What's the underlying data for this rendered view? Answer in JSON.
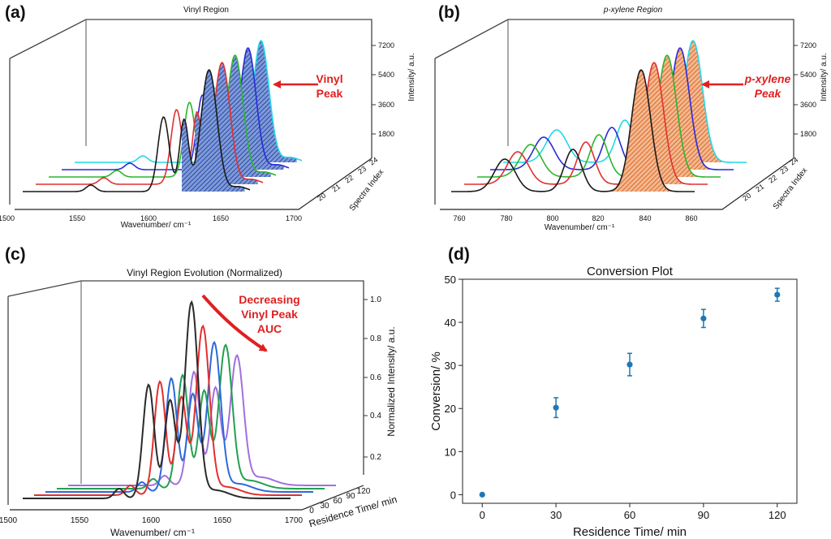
{
  "chart_data": [
    {
      "panel": "(a)",
      "type": "line",
      "title": "Vinyl Region",
      "xlabel": "Wavenumber/ cm⁻¹",
      "ylabel": "Intensity/ a.u.",
      "zlabel": "Spectra Index",
      "x_ticks": [
        "1500",
        "1550",
        "1600",
        "1650",
        "1700"
      ],
      "y_ticks": [
        "1800",
        "3600",
        "5400",
        "7200"
      ],
      "z_ticks": [
        "20",
        "21",
        "22",
        "23",
        "24"
      ],
      "annotation": "Vinyl\nPeak",
      "series_colors": [
        "#1a1a1a",
        "#e03030",
        "#2db52d",
        "#2a2ad8",
        "#22d8e8"
      ],
      "fill_color": "#2f5ab0"
    },
    {
      "panel": "(b)",
      "type": "line",
      "title": "p-xylene Region",
      "xlabel": "Wavenumber/ cm⁻¹",
      "ylabel": "Intensity/ a.u.",
      "zlabel": "Spectra Index",
      "x_ticks": [
        "760",
        "780",
        "800",
        "820",
        "840",
        "860"
      ],
      "y_ticks": [
        "1800",
        "3600",
        "5400",
        "7200"
      ],
      "z_ticks": [
        "20",
        "21",
        "22",
        "23",
        "24"
      ],
      "annotation": "p-xylene\nPeak",
      "series_colors": [
        "#1a1a1a",
        "#e03030",
        "#2db52d",
        "#2a2ad8",
        "#22d8e8"
      ],
      "fill_color": "#e0874a"
    },
    {
      "panel": "(c)",
      "type": "line",
      "title": "Vinyl Region Evolution (Normalized)",
      "xlabel": "Wavenumber/ cm⁻¹",
      "ylabel": "Normalized Intensity/ a.u.",
      "zlabel": "Residence Time/ min",
      "x_ticks": [
        "1500",
        "1550",
        "1600",
        "1650",
        "1700"
      ],
      "y_ticks": [
        "0.2",
        "0.4",
        "0.6",
        "0.8",
        "1.0"
      ],
      "z_ticks": [
        "0",
        "30",
        "60",
        "90",
        "120"
      ],
      "annotation": "Decreasing\nVinyl Peak\nAUC",
      "series": [
        {
          "name": "0 min",
          "color": "#2a2a2a",
          "peak": 1.0
        },
        {
          "name": "30 min",
          "color": "#e03030",
          "peak": 0.86
        },
        {
          "name": "60 min",
          "color": "#2a6ad8",
          "peak": 0.76
        },
        {
          "name": "90 min",
          "color": "#22a050",
          "peak": 0.73
        },
        {
          "name": "120 min",
          "color": "#a070e0",
          "peak": 0.66
        }
      ]
    },
    {
      "panel": "(d)",
      "type": "scatter",
      "title": "Conversion Plot",
      "xlabel": "Residence Time/ min",
      "ylabel": "Conversion/ %",
      "x": [
        0,
        30,
        60,
        90,
        120
      ],
      "y": [
        0,
        20.2,
        30.2,
        40.9,
        46.4
      ],
      "yerr": [
        0,
        2.3,
        2.6,
        2.1,
        1.5
      ],
      "xlim": [
        -8,
        128
      ],
      "ylim": [
        -2,
        50
      ],
      "x_ticks": [
        "0",
        "30",
        "60",
        "90",
        "120"
      ],
      "y_ticks": [
        "0",
        "10",
        "20",
        "30",
        "40",
        "50"
      ],
      "marker_color": "#1f77b4"
    }
  ]
}
